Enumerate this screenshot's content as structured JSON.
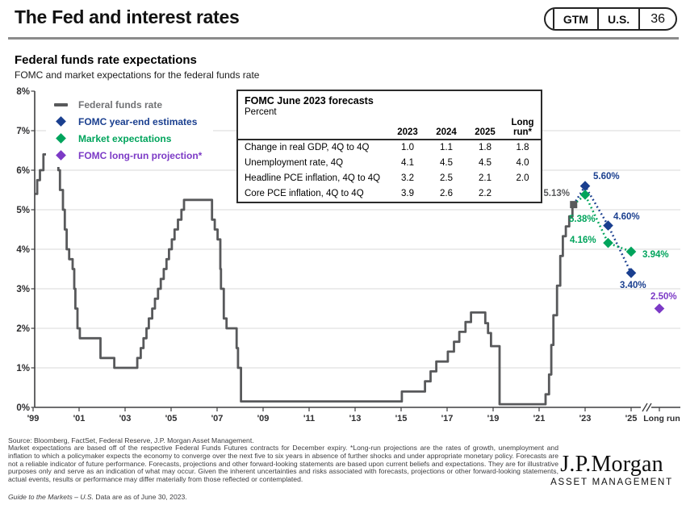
{
  "header": {
    "title": "The Fed and interest rates",
    "badge": {
      "gtm": "GTM",
      "region": "U.S.",
      "page": "36"
    }
  },
  "chart": {
    "title": "Federal funds rate expectations",
    "subtitle": "FOMC and market expectations for the federal funds rate"
  },
  "forecast_table": {
    "title": "FOMC June 2023 forecasts",
    "unit_label": "Percent",
    "columns": [
      "2023",
      "2024",
      "2025",
      "Long run*"
    ],
    "rows": [
      {
        "label": "Change in real GDP, 4Q to 4Q",
        "values": [
          "1.0",
          "1.1",
          "1.8",
          "1.8"
        ]
      },
      {
        "label": "Unemployment rate, 4Q",
        "values": [
          "4.1",
          "4.5",
          "4.5",
          "4.0"
        ]
      },
      {
        "label": "Headline PCE inflation, 4Q to 4Q",
        "values": [
          "3.2",
          "2.5",
          "2.1",
          "2.0"
        ]
      },
      {
        "label": "Core PCE inflation, 4Q to 4Q",
        "values": [
          "3.9",
          "2.6",
          "2.2",
          ""
        ]
      }
    ]
  },
  "chart_data": {
    "type": "line",
    "title": "Federal funds rate expectations",
    "subtitle": "FOMC and market expectations for the federal funds rate",
    "ylim": [
      0,
      8
    ],
    "grid": "horizontal",
    "y_tick_labels": [
      "0%",
      "1%",
      "2%",
      "3%",
      "4%",
      "5%",
      "6%",
      "7%",
      "8%"
    ],
    "x_ticks": [
      {
        "label": "'99",
        "t": 1999.92
      },
      {
        "label": "'01",
        "t": 2001.92
      },
      {
        "label": "'03",
        "t": 2003.92
      },
      {
        "label": "'05",
        "t": 2005.92
      },
      {
        "label": "'07",
        "t": 2007.92
      },
      {
        "label": "'09",
        "t": 2009.92
      },
      {
        "label": "'11",
        "t": 2011.92
      },
      {
        "label": "'13",
        "t": 2013.92
      },
      {
        "label": "'15",
        "t": 2015.92
      },
      {
        "label": "'17",
        "t": 2017.92
      },
      {
        "label": "'19",
        "t": 2019.92
      },
      {
        "label": "'21",
        "t": 2021.92
      },
      {
        "label": "'23",
        "t": 2023.92
      },
      {
        "label": "'25",
        "t": 2025.92
      },
      {
        "label": "Long run",
        "t": "long_run"
      }
    ],
    "axis_break_before_long_run": true,
    "series": [
      {
        "name": "Federal funds rate",
        "style": "step",
        "color": "#58595B",
        "end_marker": "square",
        "end_label": "5.13%",
        "points": [
          [
            2000.0,
            5.4
          ],
          [
            2000.1,
            5.75
          ],
          [
            2000.22,
            6.0
          ],
          [
            2000.37,
            6.4
          ],
          [
            2001.02,
            6.0
          ],
          [
            2001.09,
            5.5
          ],
          [
            2001.22,
            5.0
          ],
          [
            2001.3,
            4.5
          ],
          [
            2001.38,
            4.0
          ],
          [
            2001.49,
            3.75
          ],
          [
            2001.64,
            3.5
          ],
          [
            2001.71,
            3.0
          ],
          [
            2001.76,
            2.5
          ],
          [
            2001.85,
            2.0
          ],
          [
            2001.95,
            1.75
          ],
          [
            2002.85,
            1.25
          ],
          [
            2003.45,
            1.0
          ],
          [
            2004.45,
            1.25
          ],
          [
            2004.6,
            1.5
          ],
          [
            2004.72,
            1.75
          ],
          [
            2004.85,
            2.0
          ],
          [
            2004.95,
            2.25
          ],
          [
            2005.1,
            2.5
          ],
          [
            2005.22,
            2.75
          ],
          [
            2005.35,
            3.0
          ],
          [
            2005.47,
            3.25
          ],
          [
            2005.6,
            3.5
          ],
          [
            2005.72,
            3.75
          ],
          [
            2005.83,
            4.0
          ],
          [
            2005.95,
            4.25
          ],
          [
            2006.07,
            4.5
          ],
          [
            2006.22,
            4.75
          ],
          [
            2006.37,
            5.0
          ],
          [
            2006.48,
            5.25
          ],
          [
            2007.7,
            4.75
          ],
          [
            2007.82,
            4.5
          ],
          [
            2007.94,
            4.25
          ],
          [
            2008.06,
            3.5
          ],
          [
            2008.09,
            3.0
          ],
          [
            2008.21,
            2.25
          ],
          [
            2008.33,
            2.0
          ],
          [
            2008.77,
            1.5
          ],
          [
            2008.83,
            1.0
          ],
          [
            2008.96,
            0.15
          ],
          [
            2015.95,
            0.4
          ],
          [
            2016.96,
            0.66
          ],
          [
            2017.2,
            0.91
          ],
          [
            2017.45,
            1.16
          ],
          [
            2017.95,
            1.41
          ],
          [
            2018.22,
            1.66
          ],
          [
            2018.45,
            1.91
          ],
          [
            2018.72,
            2.16
          ],
          [
            2018.96,
            2.4
          ],
          [
            2019.58,
            2.13
          ],
          [
            2019.7,
            1.88
          ],
          [
            2019.83,
            1.55
          ],
          [
            2020.2,
            0.08
          ],
          [
            2022.2,
            0.33
          ],
          [
            2022.35,
            0.83
          ],
          [
            2022.45,
            1.58
          ],
          [
            2022.54,
            2.33
          ],
          [
            2022.7,
            3.08
          ],
          [
            2022.84,
            3.83
          ],
          [
            2022.95,
            4.33
          ],
          [
            2023.08,
            4.58
          ],
          [
            2023.23,
            4.83
          ],
          [
            2023.37,
            5.08
          ],
          [
            2023.42,
            5.13
          ]
        ]
      },
      {
        "name": "FOMC year-end estimates",
        "style": "dotted",
        "color": "#1A3F8F",
        "connect_from_line_end": true,
        "points": [
          [
            2023.92,
            5.6
          ],
          [
            2024.92,
            4.6
          ],
          [
            2025.92,
            3.4
          ]
        ],
        "point_labels": [
          "5.60%",
          "4.60%",
          "3.40%"
        ]
      },
      {
        "name": "Market expectations",
        "style": "dotted",
        "color": "#00A45C",
        "connect_from_line_end": true,
        "points": [
          [
            2023.92,
            5.38
          ],
          [
            2024.92,
            4.16
          ],
          [
            2025.92,
            3.94
          ]
        ],
        "point_labels": [
          "5.38%",
          "4.16%",
          "3.94%"
        ]
      },
      {
        "name": "FOMC long-run projection*",
        "style": "point",
        "color": "#7C3AC6",
        "points": [
          [
            "long_run",
            2.5
          ]
        ],
        "point_labels": [
          "2.50%"
        ]
      }
    ]
  },
  "footer": {
    "source_line": "Source: Bloomberg, FactSet, Federal Reserve, J.P. Morgan Asset Management.",
    "disclaimer": "Market expectations are based off of the respective Federal Funds Futures contracts for December expiry. *Long-run projections are the rates of growth, unemployment and inflation to which a policymaker expects the economy to converge over the next five to six years in absence of further shocks and under appropriate monetary policy. Forecasts are not a reliable indicator of future performance. Forecasts, projections and other forward-looking statements are based upon current beliefs and expectations. They are for illustrative purposes only and serve as an indication of what may occur. Given the inherent uncertainties and risks associated with forecasts, projections or other forward-looking statements, actual events, results or performance may differ materially from those reflected or contemplated.",
    "gtm_italic": "Guide to the Markets – U.S.",
    "gtm_rest": " Data are as of June 30, 2023."
  },
  "logo": {
    "brand": "J.P.Morgan",
    "division": "ASSET MANAGEMENT"
  }
}
